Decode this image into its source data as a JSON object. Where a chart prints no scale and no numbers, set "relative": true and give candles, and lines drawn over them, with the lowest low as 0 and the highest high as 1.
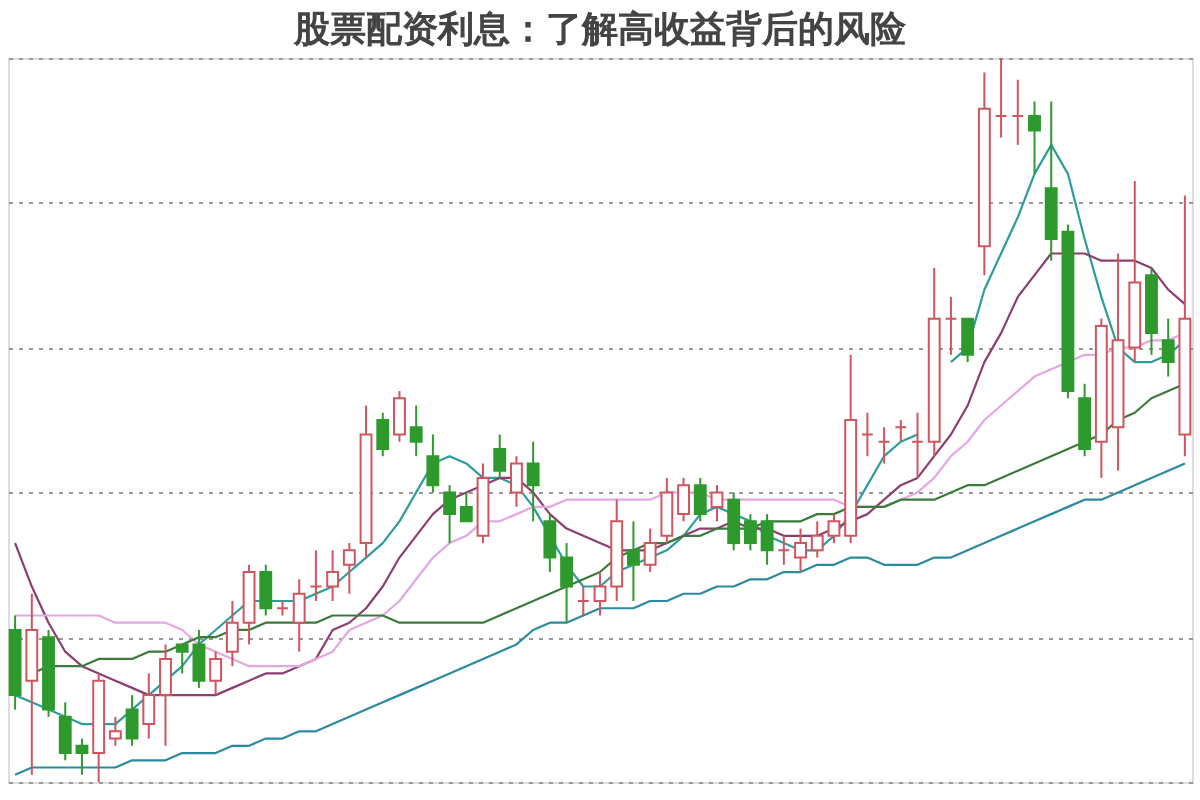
{
  "chart_data": {
    "type": "candlestick",
    "title": "股票配资利息：了解高收益背后的风险",
    "relative": true,
    "grid": "y",
    "categories": [
      null,
      null,
      null,
      null,
      null,
      null,
      null,
      null,
      null,
      null,
      null,
      null,
      null,
      null,
      null,
      null,
      null,
      null,
      null,
      null,
      null,
      null,
      null,
      null,
      null,
      null,
      null,
      null,
      null,
      null,
      null,
      null,
      null,
      null,
      null,
      null,
      null,
      null,
      null,
      null,
      null,
      null,
      null,
      null,
      null,
      null,
      null,
      null,
      null,
      null,
      null,
      null,
      null,
      null,
      null,
      null,
      null,
      null,
      null,
      null,
      null,
      null,
      null,
      null,
      null,
      null,
      null,
      null,
      null,
      null,
      null
    ],
    "ohlc": [
      [
        0.21,
        0.23,
        0.1,
        0.12
      ],
      [
        0.14,
        0.26,
        0.01,
        0.21
      ],
      [
        0.2,
        0.21,
        0.09,
        0.1
      ],
      [
        0.09,
        0.11,
        0.03,
        0.04
      ],
      [
        0.05,
        0.06,
        0.01,
        0.04
      ],
      [
        0.04,
        0.15,
        0.0,
        0.14
      ],
      [
        0.06,
        0.09,
        0.05,
        0.07
      ],
      [
        0.1,
        0.12,
        0.05,
        0.06
      ],
      [
        0.08,
        0.15,
        0.06,
        0.12
      ],
      [
        0.12,
        0.19,
        0.05,
        0.17
      ],
      [
        0.19,
        0.19,
        0.15,
        0.18
      ],
      [
        0.19,
        0.21,
        0.13,
        0.14
      ],
      [
        0.14,
        0.18,
        0.12,
        0.17
      ],
      [
        0.18,
        0.25,
        0.16,
        0.22
      ],
      [
        0.22,
        0.3,
        0.19,
        0.29
      ],
      [
        0.29,
        0.3,
        0.23,
        0.24
      ],
      [
        0.24,
        0.25,
        0.23,
        0.24
      ],
      [
        0.22,
        0.28,
        0.18,
        0.26
      ],
      [
        0.27,
        0.32,
        0.25,
        0.27
      ],
      [
        0.27,
        0.32,
        0.25,
        0.29
      ],
      [
        0.3,
        0.33,
        0.26,
        0.32
      ],
      [
        0.33,
        0.52,
        0.31,
        0.48
      ],
      [
        0.5,
        0.51,
        0.45,
        0.46
      ],
      [
        0.48,
        0.54,
        0.47,
        0.53
      ],
      [
        0.49,
        0.52,
        0.45,
        0.47
      ],
      [
        0.45,
        0.48,
        0.4,
        0.41
      ],
      [
        0.4,
        0.41,
        0.33,
        0.37
      ],
      [
        0.38,
        0.4,
        0.36,
        0.36
      ],
      [
        0.34,
        0.44,
        0.33,
        0.42
      ],
      [
        0.46,
        0.48,
        0.42,
        0.43
      ],
      [
        0.4,
        0.45,
        0.38,
        0.44
      ],
      [
        0.44,
        0.47,
        0.36,
        0.41
      ],
      [
        0.36,
        0.37,
        0.29,
        0.31
      ],
      [
        0.31,
        0.33,
        0.22,
        0.27
      ],
      [
        0.25,
        0.27,
        0.23,
        0.25
      ],
      [
        0.25,
        0.29,
        0.23,
        0.27
      ],
      [
        0.27,
        0.39,
        0.25,
        0.36
      ],
      [
        0.32,
        0.36,
        0.25,
        0.3
      ],
      [
        0.3,
        0.35,
        0.29,
        0.33
      ],
      [
        0.34,
        0.42,
        0.33,
        0.4
      ],
      [
        0.37,
        0.42,
        0.36,
        0.41
      ],
      [
        0.41,
        0.42,
        0.36,
        0.37
      ],
      [
        0.38,
        0.41,
        0.36,
        0.4
      ],
      [
        0.39,
        0.4,
        0.32,
        0.33
      ],
      [
        0.36,
        0.37,
        0.32,
        0.33
      ],
      [
        0.36,
        0.37,
        0.3,
        0.32
      ],
      [
        0.32,
        0.34,
        0.3,
        0.32
      ],
      [
        0.31,
        0.35,
        0.29,
        0.33
      ],
      [
        0.32,
        0.36,
        0.31,
        0.34
      ],
      [
        0.34,
        0.37,
        0.33,
        0.36
      ],
      [
        0.34,
        0.59,
        0.33,
        0.5
      ],
      [
        0.48,
        0.51,
        0.45,
        0.48
      ],
      [
        0.47,
        0.49,
        0.44,
        0.47
      ],
      [
        0.49,
        0.5,
        0.47,
        0.49
      ],
      [
        0.47,
        0.51,
        0.42,
        0.47
      ],
      [
        0.47,
        0.71,
        0.45,
        0.64
      ],
      [
        0.64,
        0.67,
        0.59,
        0.64
      ],
      [
        0.64,
        0.64,
        0.58,
        0.59
      ],
      [
        0.74,
        0.98,
        0.7,
        0.93
      ],
      [
        0.92,
        1.0,
        0.89,
        0.92
      ],
      [
        0.92,
        0.97,
        0.88,
        0.92
      ],
      [
        0.92,
        0.94,
        0.84,
        0.9
      ],
      [
        0.82,
        0.94,
        0.72,
        0.75
      ],
      [
        0.76,
        0.77,
        0.53,
        0.54
      ],
      [
        0.53,
        0.55,
        0.45,
        0.46
      ],
      [
        0.47,
        0.64,
        0.42,
        0.63
      ],
      [
        0.49,
        0.73,
        0.43,
        0.61
      ],
      [
        0.6,
        0.83,
        0.58,
        0.69
      ],
      [
        0.7,
        0.71,
        0.59,
        0.62
      ],
      [
        0.61,
        0.64,
        0.56,
        0.58
      ],
      [
        0.48,
        0.81,
        0.45,
        0.64
      ]
    ],
    "series": [
      {
        "type": "line",
        "color": "#2f9c9c",
        "values": [
          0.12,
          0.11,
          0.1,
          0.09,
          0.08,
          0.08,
          0.08,
          0.1,
          0.12,
          0.14,
          0.16,
          0.19,
          0.21,
          0.23,
          0.25,
          0.25,
          0.25,
          0.25,
          0.26,
          0.27,
          0.29,
          0.31,
          0.33,
          0.36,
          0.4,
          0.44,
          0.45,
          0.44,
          0.42,
          0.42,
          0.41,
          0.38,
          0.34,
          0.3,
          0.27,
          0.27,
          0.29,
          0.3,
          0.31,
          0.32,
          0.34,
          0.37,
          0.38,
          0.37,
          0.36,
          0.34,
          0.33,
          0.32,
          0.32,
          0.34,
          0.37,
          0.41,
          0.45,
          0.47,
          0.48,
          null,
          0.58,
          0.6,
          0.68,
          0.73,
          0.78,
          0.84,
          0.88,
          0.84,
          0.75,
          0.67,
          0.6,
          0.58,
          0.58,
          0.59,
          0.61
        ]
      },
      {
        "type": "line",
        "color": "#8a3f6e",
        "values": [
          0.33,
          0.27,
          0.22,
          0.18,
          0.16,
          0.15,
          0.14,
          0.13,
          0.12,
          0.12,
          0.12,
          0.12,
          0.12,
          0.13,
          0.14,
          0.15,
          0.15,
          0.16,
          0.17,
          0.21,
          0.22,
          0.24,
          0.27,
          0.31,
          0.34,
          0.37,
          0.39,
          0.4,
          0.41,
          0.42,
          0.42,
          0.4,
          0.37,
          0.35,
          0.34,
          0.33,
          0.32,
          0.32,
          0.32,
          0.33,
          0.34,
          0.35,
          0.35,
          0.36,
          0.35,
          0.35,
          0.34,
          0.34,
          0.34,
          0.35,
          0.36,
          0.37,
          0.39,
          0.41,
          0.42,
          0.45,
          0.48,
          0.52,
          0.58,
          0.62,
          0.67,
          0.7,
          0.73,
          0.73,
          0.73,
          0.72,
          0.72,
          0.72,
          0.71,
          0.68,
          0.66
        ]
      },
      {
        "type": "line",
        "color": "#e4a6e4",
        "values": [
          0.23,
          0.23,
          0.23,
          0.23,
          0.23,
          0.23,
          0.22,
          0.22,
          0.22,
          0.22,
          0.21,
          0.19,
          0.18,
          0.17,
          0.16,
          0.16,
          0.16,
          0.16,
          0.17,
          0.18,
          0.21,
          0.22,
          0.23,
          0.25,
          0.28,
          0.31,
          0.33,
          0.34,
          0.36,
          0.36,
          0.37,
          0.38,
          0.38,
          0.39,
          0.39,
          0.39,
          0.39,
          0.39,
          0.39,
          0.4,
          0.4,
          0.4,
          0.39,
          0.39,
          0.39,
          0.39,
          0.39,
          0.39,
          0.39,
          0.39,
          0.38,
          0.38,
          0.38,
          0.39,
          0.4,
          0.42,
          0.45,
          0.47,
          0.5,
          0.52,
          0.54,
          0.56,
          0.57,
          0.58,
          0.59,
          0.59,
          0.6,
          0.6,
          0.61,
          0.61,
          0.62
        ]
      },
      {
        "type": "line",
        "color": "#3c7a3c",
        "values": [
          null,
          0.15,
          0.16,
          0.16,
          0.16,
          0.17,
          0.17,
          0.17,
          0.18,
          0.18,
          0.19,
          0.2,
          0.2,
          0.21,
          0.21,
          0.22,
          0.22,
          0.22,
          0.22,
          0.23,
          0.23,
          0.23,
          0.23,
          0.22,
          0.22,
          0.22,
          0.22,
          0.22,
          0.22,
          0.23,
          0.24,
          0.25,
          0.26,
          0.27,
          0.28,
          0.29,
          0.31,
          0.32,
          0.33,
          0.33,
          0.34,
          0.34,
          0.35,
          0.35,
          0.35,
          0.36,
          0.36,
          0.36,
          0.37,
          0.37,
          0.38,
          0.38,
          0.38,
          0.39,
          0.39,
          0.39,
          0.4,
          0.41,
          0.41,
          0.42,
          0.43,
          0.44,
          0.45,
          0.46,
          0.47,
          0.48,
          0.5,
          0.51,
          0.53,
          0.54,
          0.55
        ]
      },
      {
        "type": "line",
        "color": "#2b8a9e",
        "values": [
          0.01,
          0.02,
          0.02,
          0.02,
          0.02,
          0.02,
          0.02,
          0.03,
          0.03,
          0.03,
          0.04,
          0.04,
          0.04,
          0.05,
          0.05,
          0.06,
          0.06,
          0.07,
          0.07,
          0.08,
          0.09,
          0.1,
          0.11,
          0.12,
          0.13,
          0.14,
          0.15,
          0.16,
          0.17,
          0.18,
          0.19,
          0.21,
          0.22,
          0.22,
          0.23,
          0.24,
          0.24,
          0.24,
          0.25,
          0.25,
          0.26,
          0.26,
          0.27,
          0.27,
          0.28,
          0.28,
          0.29,
          0.29,
          0.3,
          0.3,
          0.31,
          0.31,
          0.3,
          0.3,
          0.3,
          0.31,
          0.31,
          0.32,
          0.33,
          0.34,
          0.35,
          0.36,
          0.37,
          0.38,
          0.39,
          0.39,
          0.4,
          0.41,
          0.42,
          0.43,
          0.44
        ]
      }
    ]
  }
}
